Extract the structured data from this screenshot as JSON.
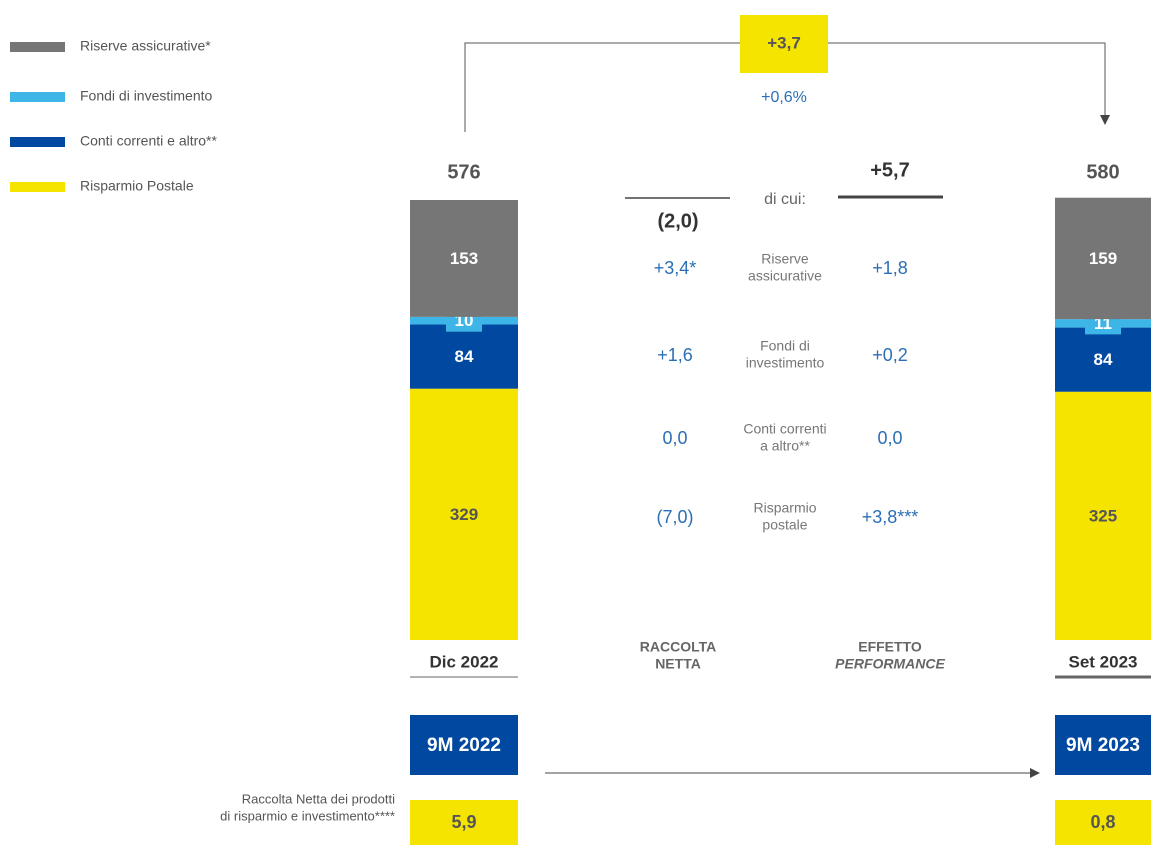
{
  "chart_data": {
    "type": "stacked_bar",
    "categories": [
      "Dic 2022",
      "Set 2023"
    ],
    "totals": [
      576,
      580
    ],
    "series": [
      {
        "name": "Riserve assicurative*",
        "color": "#767676",
        "values": [
          153,
          159
        ]
      },
      {
        "name": "Fondi di investimento",
        "color": "#3db5e6",
        "values": [
          10,
          11
        ]
      },
      {
        "name": "Conti correnti e altro**",
        "color": "#0048a0",
        "values": [
          84,
          84
        ]
      },
      {
        "name": "Risparmio Postale",
        "color": "#f5e400",
        "values": [
          329,
          325
        ]
      }
    ],
    "change": {
      "value": 3.7,
      "label": "+3,7"
    },
    "change_pct": {
      "value": 0.6,
      "label": "+0,6%"
    },
    "of_which": "di cui:",
    "rows": [
      [
        "Riserve",
        "assicurative"
      ],
      [
        "Fondi di",
        "investimento"
      ],
      [
        "Conti correnti",
        "a altro**"
      ],
      [
        "Risparmio",
        "postale"
      ]
    ],
    "columns": [
      {
        "title": [
          "RACCOLTA",
          "NETTA"
        ],
        "total": {
          "value": -2.0,
          "label": "(2,0)"
        },
        "values": [
          3.4,
          1.6,
          0.0,
          -7.0
        ],
        "value_labels": [
          "+3,4*",
          "+1,6",
          "0,0",
          "(7,0)"
        ]
      },
      {
        "title": [
          "EFFETTO",
          "PERFORMANCE"
        ],
        "total": {
          "value": 5.7,
          "label": "+5,7"
        },
        "values": [
          1.8,
          0.2,
          0.0,
          3.8
        ],
        "value_labels": [
          "+1,8",
          "+0,2",
          "0,0",
          "+3,8***"
        ]
      }
    ],
    "periods": [
      "9M 2022",
      "9M 2023"
    ],
    "net_inflow_label": [
      "Raccolta Netta dei prodotti",
      "di risparmio e investimento****"
    ],
    "net_inflow": {
      "values": [
        5.9,
        0.8
      ],
      "value_labels": [
        "5,9",
        "0,8"
      ]
    }
  }
}
